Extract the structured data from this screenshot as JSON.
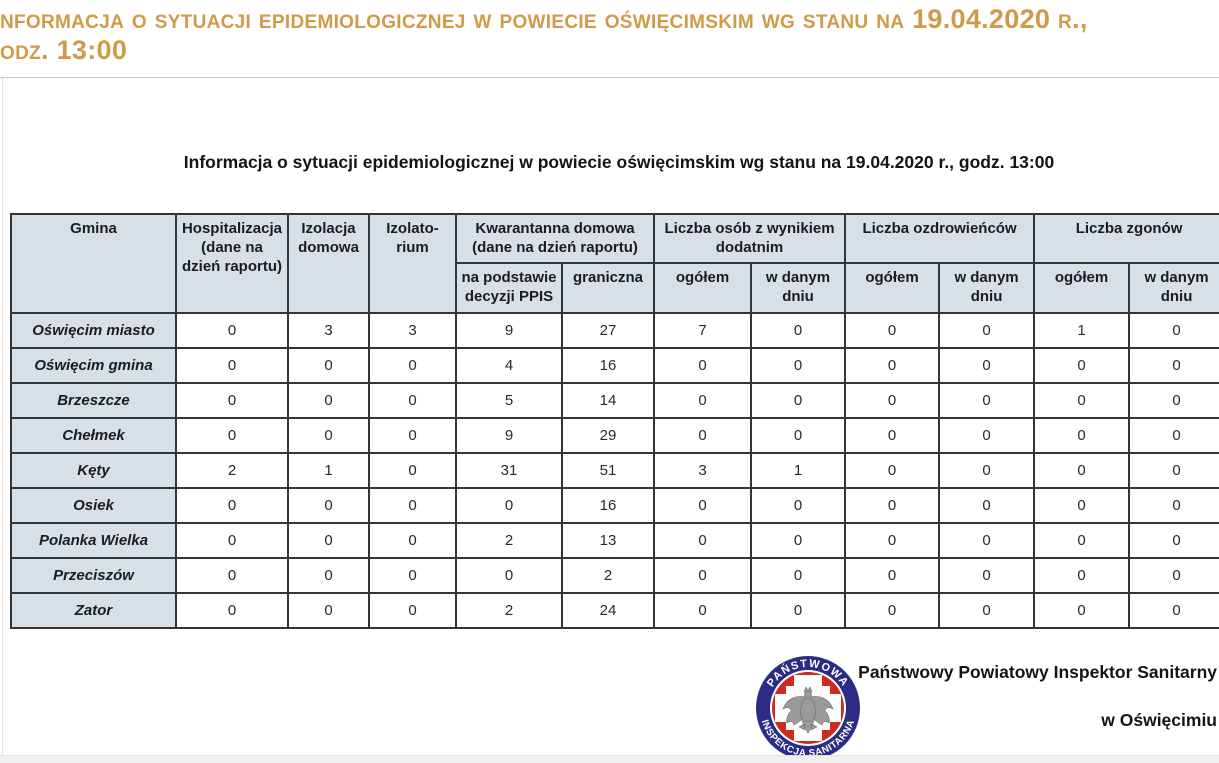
{
  "banner": {
    "line1": "nformacja o sytuacji epidemiologicznej w powiecie oświęcimskim wg stanu na 19.04.2020 r.,",
    "line2": "odz. 13:00",
    "text_color": "#d19a48"
  },
  "document": {
    "title": "Informacja o sytuacji epidemiologicznej w powiecie oświęcimskim wg stanu na 19.04.2020 r., godz. 13:00",
    "table": {
      "header_groups": {
        "gmina": "Gmina",
        "hospitalizacja": "Hospitalizacja (dane na dzień raportu)",
        "izolacja_domowa": "Izolacja domowa",
        "izolatorium": "Izolato-rium",
        "kwarantanna": "Kwarantanna domowa (dane na dzień raportu)",
        "wynik_dodatni": "Liczba osób z wynikiem dodatnim",
        "ozdrowiency": "Liczba ozdrowieńców",
        "zgony": "Liczba zgonów"
      },
      "subheaders": [
        "na podstawie decyzji PPIS",
        "graniczna",
        "ogółem",
        "w danym dniu",
        "ogółem",
        "w danym dniu",
        "ogółem",
        "w danym dniu"
      ],
      "rows": [
        {
          "gmina": "Oświęcim miasto",
          "values": [
            0,
            3,
            3,
            9,
            27,
            7,
            0,
            0,
            0,
            1,
            0
          ]
        },
        {
          "gmina": "Oświęcim gmina",
          "values": [
            0,
            0,
            0,
            4,
            16,
            0,
            0,
            0,
            0,
            0,
            0
          ]
        },
        {
          "gmina": "Brzeszcze",
          "values": [
            0,
            0,
            0,
            5,
            14,
            0,
            0,
            0,
            0,
            0,
            0
          ]
        },
        {
          "gmina": "Chełmek",
          "values": [
            0,
            0,
            0,
            9,
            29,
            0,
            0,
            0,
            0,
            0,
            0
          ]
        },
        {
          "gmina": "Kęty",
          "values": [
            2,
            1,
            0,
            31,
            51,
            3,
            1,
            0,
            0,
            0,
            0
          ]
        },
        {
          "gmina": "Osiek",
          "values": [
            0,
            0,
            0,
            0,
            16,
            0,
            0,
            0,
            0,
            0,
            0
          ]
        },
        {
          "gmina": "Polanka Wielka",
          "values": [
            0,
            0,
            0,
            2,
            13,
            0,
            0,
            0,
            0,
            0,
            0
          ]
        },
        {
          "gmina": "Przeciszów",
          "values": [
            0,
            0,
            0,
            0,
            2,
            0,
            0,
            0,
            0,
            0,
            0
          ]
        },
        {
          "gmina": "Zator",
          "values": [
            0,
            0,
            0,
            2,
            24,
            0,
            0,
            0,
            0,
            0,
            0
          ]
        }
      ],
      "header_bg": "#d7dfe7"
    }
  },
  "footer": {
    "signature_line1": "Państwowy Powiatowy Inspektor Sanitarny",
    "signature_line2": "w Oświęcimiu",
    "logo": {
      "text_top": "PAŃSTWOWA",
      "text_bottom": "INSPEKCJA SANITARNA",
      "navy": "#2b2d84",
      "red": "#cc2b20"
    }
  }
}
